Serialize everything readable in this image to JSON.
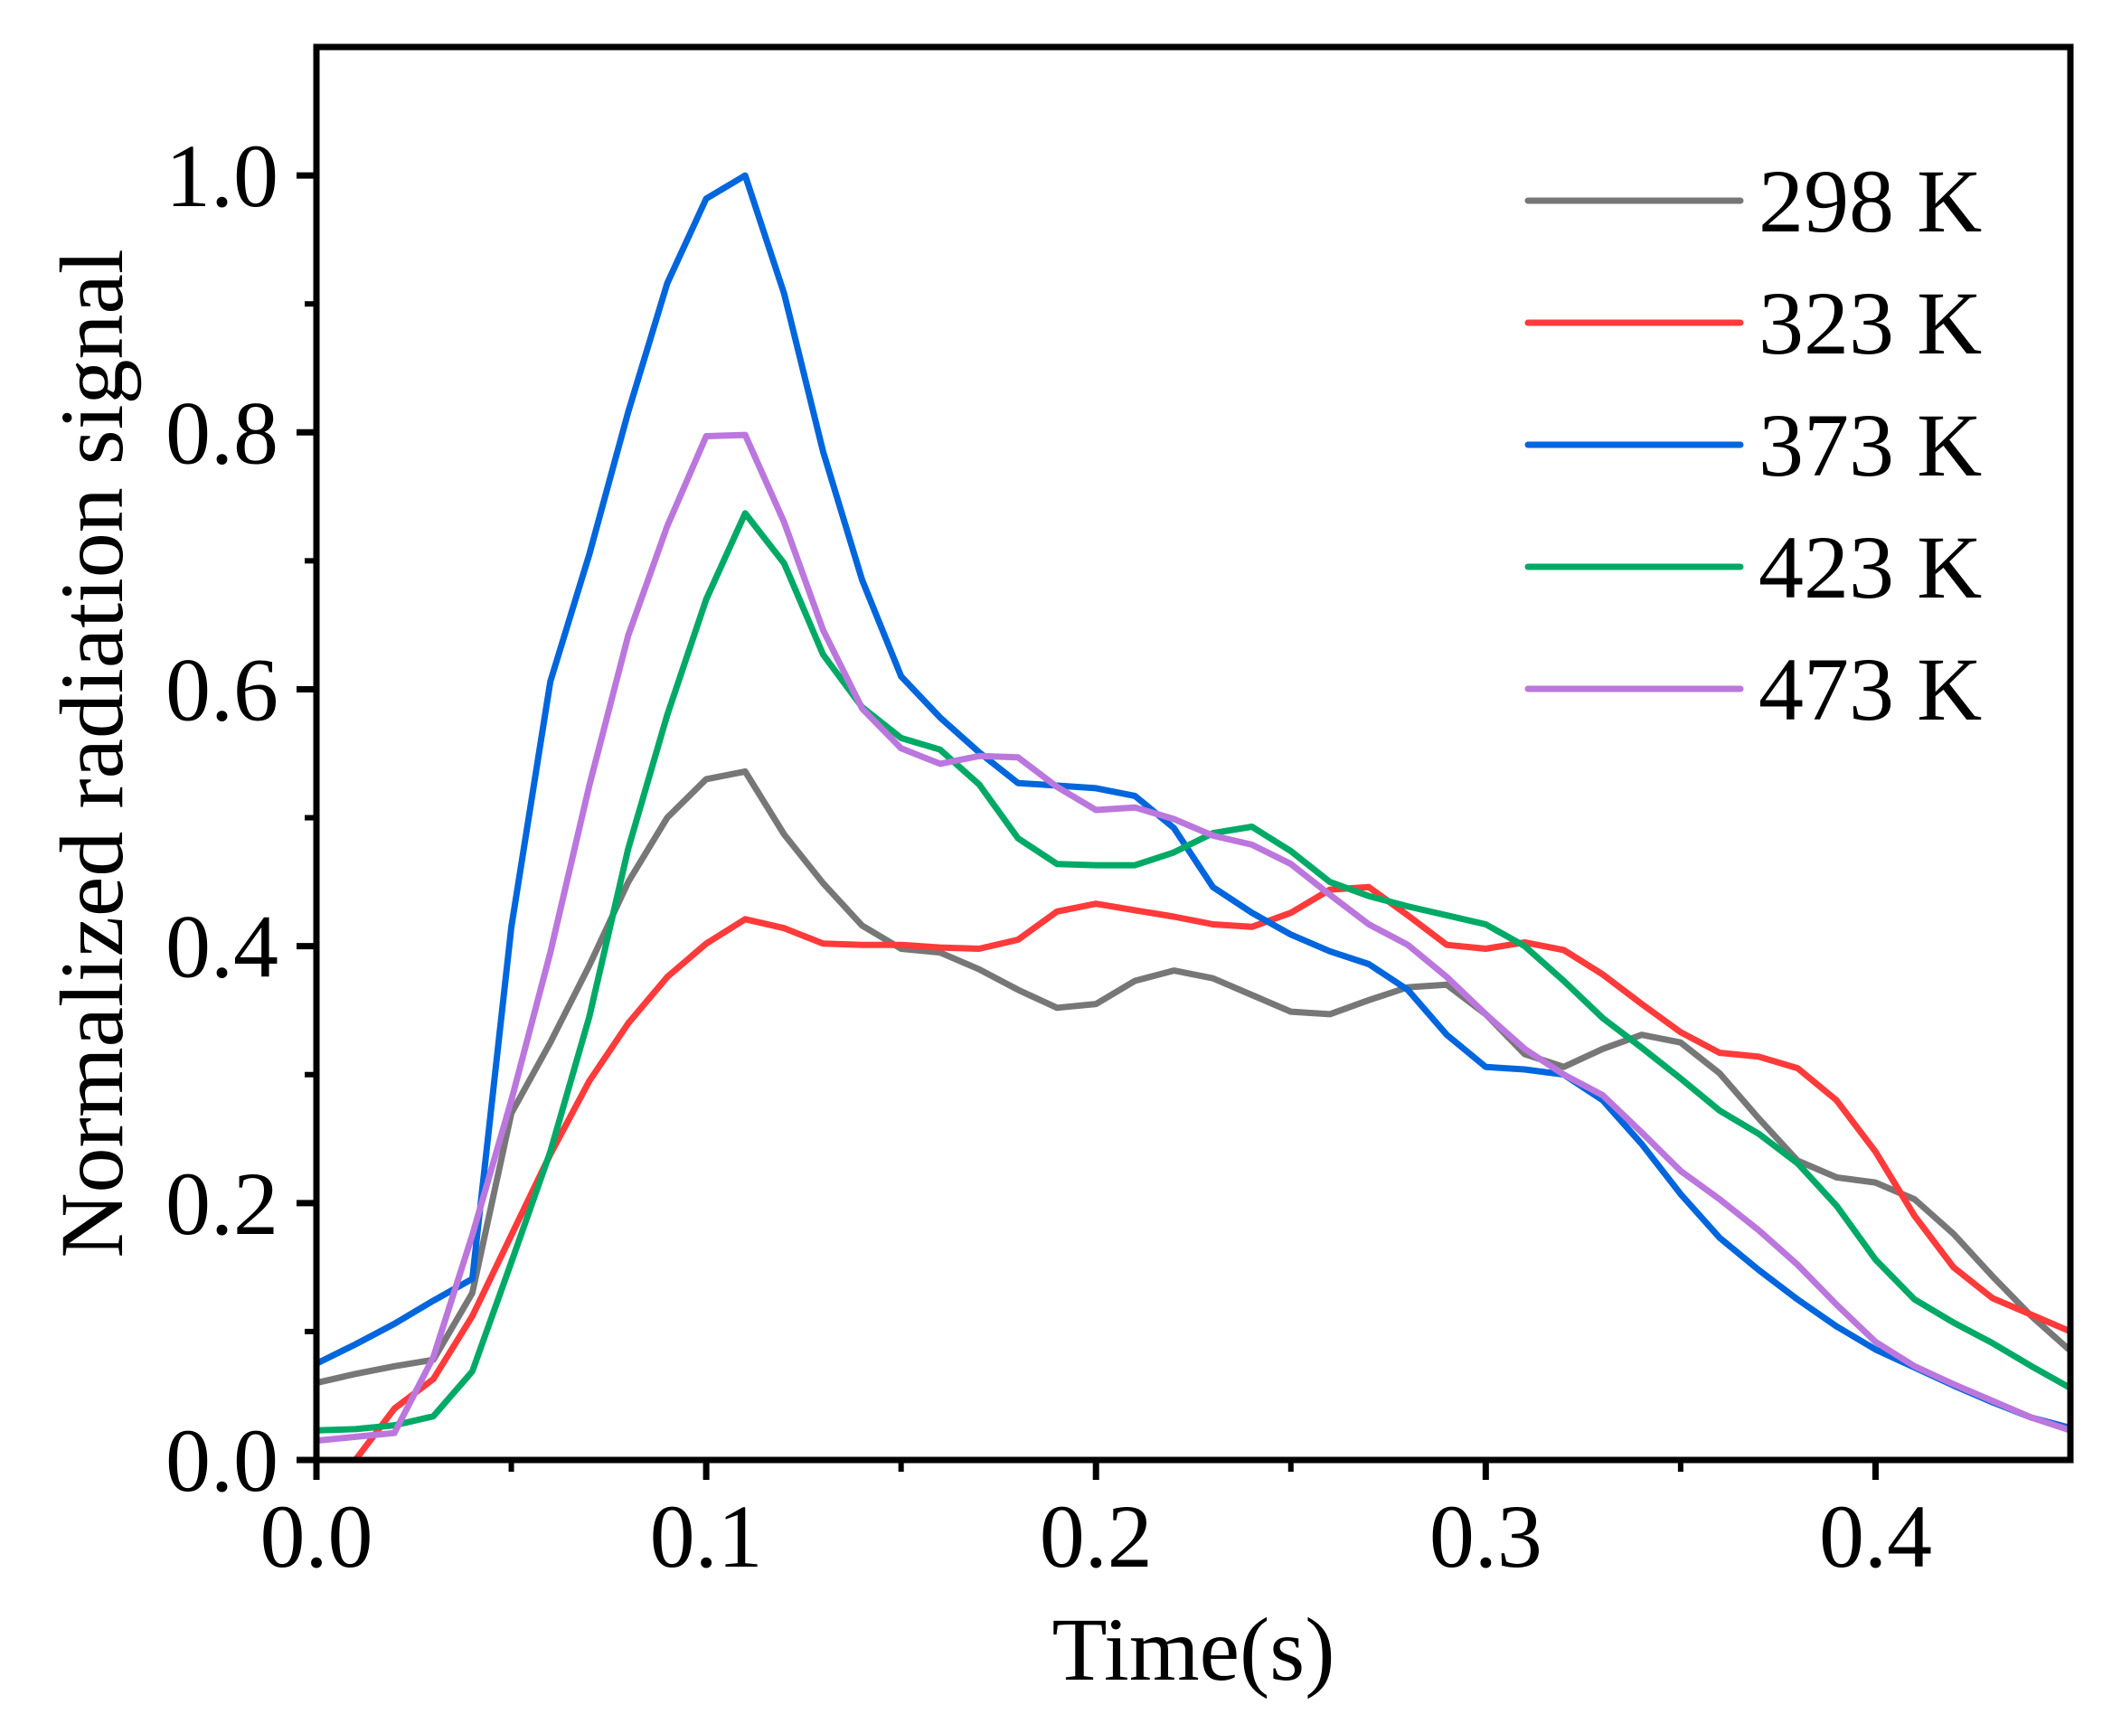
{
  "chart_data": {
    "type": "line",
    "title": "",
    "xlabel": "Time(s)",
    "ylabel": "Normalized radiation signal",
    "xlim": [
      0.0,
      0.45
    ],
    "ylim": [
      0.0,
      1.1
    ],
    "x_ticks": [
      0.0,
      0.1,
      0.2,
      0.3,
      0.4
    ],
    "x_tick_labels": [
      "0.0",
      "0.1",
      "0.2",
      "0.3",
      "0.4"
    ],
    "y_ticks": [
      0.0,
      0.2,
      0.4,
      0.6,
      0.8,
      1.0
    ],
    "y_tick_labels": [
      "0.0",
      "0.2",
      "0.4",
      "0.6",
      "0.8",
      "1.0"
    ],
    "grid": false,
    "legend_position": "top-right",
    "x": [
      0.0,
      0.01,
      0.02,
      0.03,
      0.04,
      0.05,
      0.06,
      0.07,
      0.08,
      0.09,
      0.1,
      0.11,
      0.12,
      0.13,
      0.14,
      0.15,
      0.16,
      0.17,
      0.18,
      0.19,
      0.2,
      0.21,
      0.22,
      0.23,
      0.24,
      0.25,
      0.26,
      0.27,
      0.28,
      0.29,
      0.3,
      0.31,
      0.32,
      0.33,
      0.34,
      0.35,
      0.36,
      0.37,
      0.38,
      0.39,
      0.4,
      0.41,
      0.42,
      0.43,
      0.44,
      0.45
    ],
    "series": [
      {
        "name": "298 K",
        "color": "#777777",
        "values": [
          0.06,
          0.067,
          0.073,
          0.078,
          0.13,
          0.27,
          0.325,
          0.385,
          0.45,
          0.5,
          0.53,
          0.536,
          0.487,
          0.449,
          0.416,
          0.398,
          0.395,
          0.382,
          0.366,
          0.352,
          0.355,
          0.373,
          0.381,
          0.375,
          0.362,
          0.349,
          0.347,
          0.358,
          0.368,
          0.37,
          0.347,
          0.316,
          0.306,
          0.32,
          0.331,
          0.325,
          0.301,
          0.266,
          0.233,
          0.22,
          0.216,
          0.203,
          0.176,
          0.143,
          0.112,
          0.085
        ]
      },
      {
        "name": "323 K",
        "color": "#ff3a3a",
        "values": [
          0.0,
          0.0,
          0.04,
          0.063,
          0.112,
          0.175,
          0.238,
          0.295,
          0.34,
          0.376,
          0.402,
          0.421,
          0.414,
          0.402,
          0.401,
          0.401,
          0.399,
          0.398,
          0.405,
          0.427,
          0.433,
          0.428,
          0.423,
          0.417,
          0.415,
          0.426,
          0.444,
          0.446,
          0.424,
          0.401,
          0.398,
          0.403,
          0.397,
          0.378,
          0.355,
          0.333,
          0.317,
          0.314,
          0.305,
          0.28,
          0.24,
          0.19,
          0.15,
          0.126,
          0.113,
          0.1
        ]
      },
      {
        "name": "373 K",
        "color": "#0066dd",
        "values": [
          0.075,
          0.09,
          0.106,
          0.124,
          0.141,
          0.415,
          0.606,
          0.705,
          0.816,
          0.916,
          0.982,
          1.0,
          0.908,
          0.785,
          0.685,
          0.61,
          0.578,
          0.551,
          0.527,
          0.525,
          0.523,
          0.517,
          0.492,
          0.446,
          0.426,
          0.409,
          0.396,
          0.386,
          0.366,
          0.331,
          0.306,
          0.304,
          0.3,
          0.28,
          0.246,
          0.207,
          0.173,
          0.148,
          0.125,
          0.104,
          0.086,
          0.072,
          0.058,
          0.045,
          0.033,
          0.025
        ]
      },
      {
        "name": "423 K",
        "color": "#00aa66",
        "values": [
          0.023,
          0.024,
          0.027,
          0.034,
          0.069,
          0.154,
          0.24,
          0.345,
          0.476,
          0.58,
          0.67,
          0.737,
          0.698,
          0.627,
          0.586,
          0.562,
          0.553,
          0.526,
          0.484,
          0.464,
          0.463,
          0.463,
          0.473,
          0.488,
          0.493,
          0.474,
          0.45,
          0.439,
          0.431,
          0.424,
          0.417,
          0.4,
          0.373,
          0.344,
          0.321,
          0.297,
          0.272,
          0.254,
          0.231,
          0.198,
          0.156,
          0.125,
          0.107,
          0.091,
          0.073,
          0.056
        ]
      },
      {
        "name": "473 K",
        "color": "#bb77dd",
        "values": [
          0.015,
          0.018,
          0.021,
          0.08,
          0.175,
          0.28,
          0.395,
          0.525,
          0.642,
          0.727,
          0.797,
          0.798,
          0.73,
          0.646,
          0.585,
          0.554,
          0.542,
          0.548,
          0.547,
          0.524,
          0.506,
          0.508,
          0.499,
          0.486,
          0.479,
          0.464,
          0.44,
          0.417,
          0.401,
          0.376,
          0.347,
          0.32,
          0.3,
          0.284,
          0.255,
          0.225,
          0.203,
          0.179,
          0.152,
          0.121,
          0.092,
          0.073,
          0.059,
          0.046,
          0.033,
          0.023
        ]
      }
    ]
  }
}
